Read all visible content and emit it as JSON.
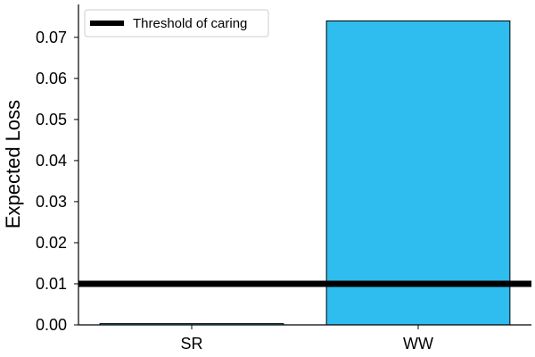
{
  "chart_data": {
    "type": "bar",
    "title": "",
    "xlabel": "",
    "ylabel": "Expected Loss",
    "categories": [
      "SR",
      "WW"
    ],
    "values": [
      0.0003,
      0.074
    ],
    "ylim": [
      0,
      0.078
    ],
    "yticks": [
      "0.00",
      "0.01",
      "0.02",
      "0.03",
      "0.04",
      "0.05",
      "0.06",
      "0.07"
    ],
    "bar_color": "#2fbcee",
    "threshold": {
      "name": "Threshold of caring",
      "value": 0.01,
      "color": "#000000"
    },
    "legend_position": "top-left",
    "grid": false
  }
}
